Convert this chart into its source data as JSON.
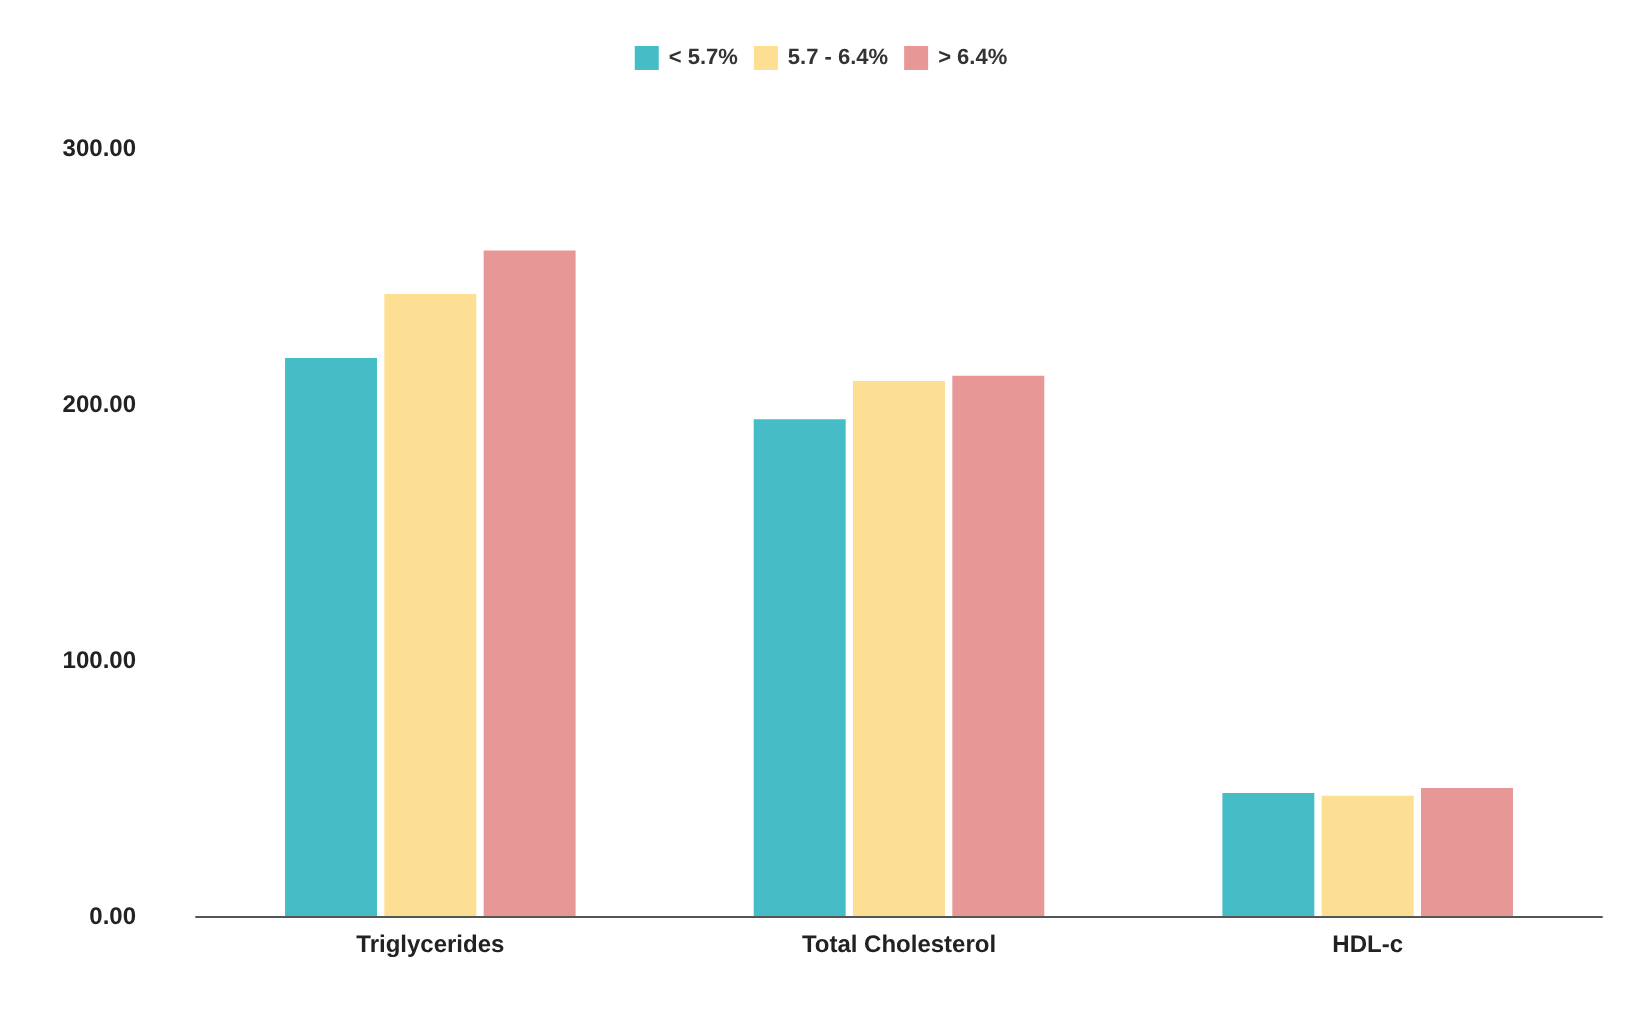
{
  "chart_data": {
    "type": "bar",
    "categories": [
      "Triglycerides",
      "Total Cholesterol",
      "HDL-c"
    ],
    "series": [
      {
        "name": "< 5.7%",
        "color": "#46bdc6",
        "values": [
          218,
          194,
          48
        ]
      },
      {
        "name": "5.7 - 6.4%",
        "color": "#fcdf93",
        "values": [
          243,
          209,
          47
        ]
      },
      {
        "name": "> 6.4%",
        "color": "#e89797",
        "values": [
          260,
          211,
          50
        ]
      }
    ],
    "ylim": [
      0,
      300
    ],
    "yticks": [
      {
        "value": 0,
        "label": "0.00"
      },
      {
        "value": 100,
        "label": "100.00"
      },
      {
        "value": 200,
        "label": "200.00"
      },
      {
        "value": 300,
        "label": "300.00"
      }
    ],
    "grid": false,
    "legend": "top"
  }
}
